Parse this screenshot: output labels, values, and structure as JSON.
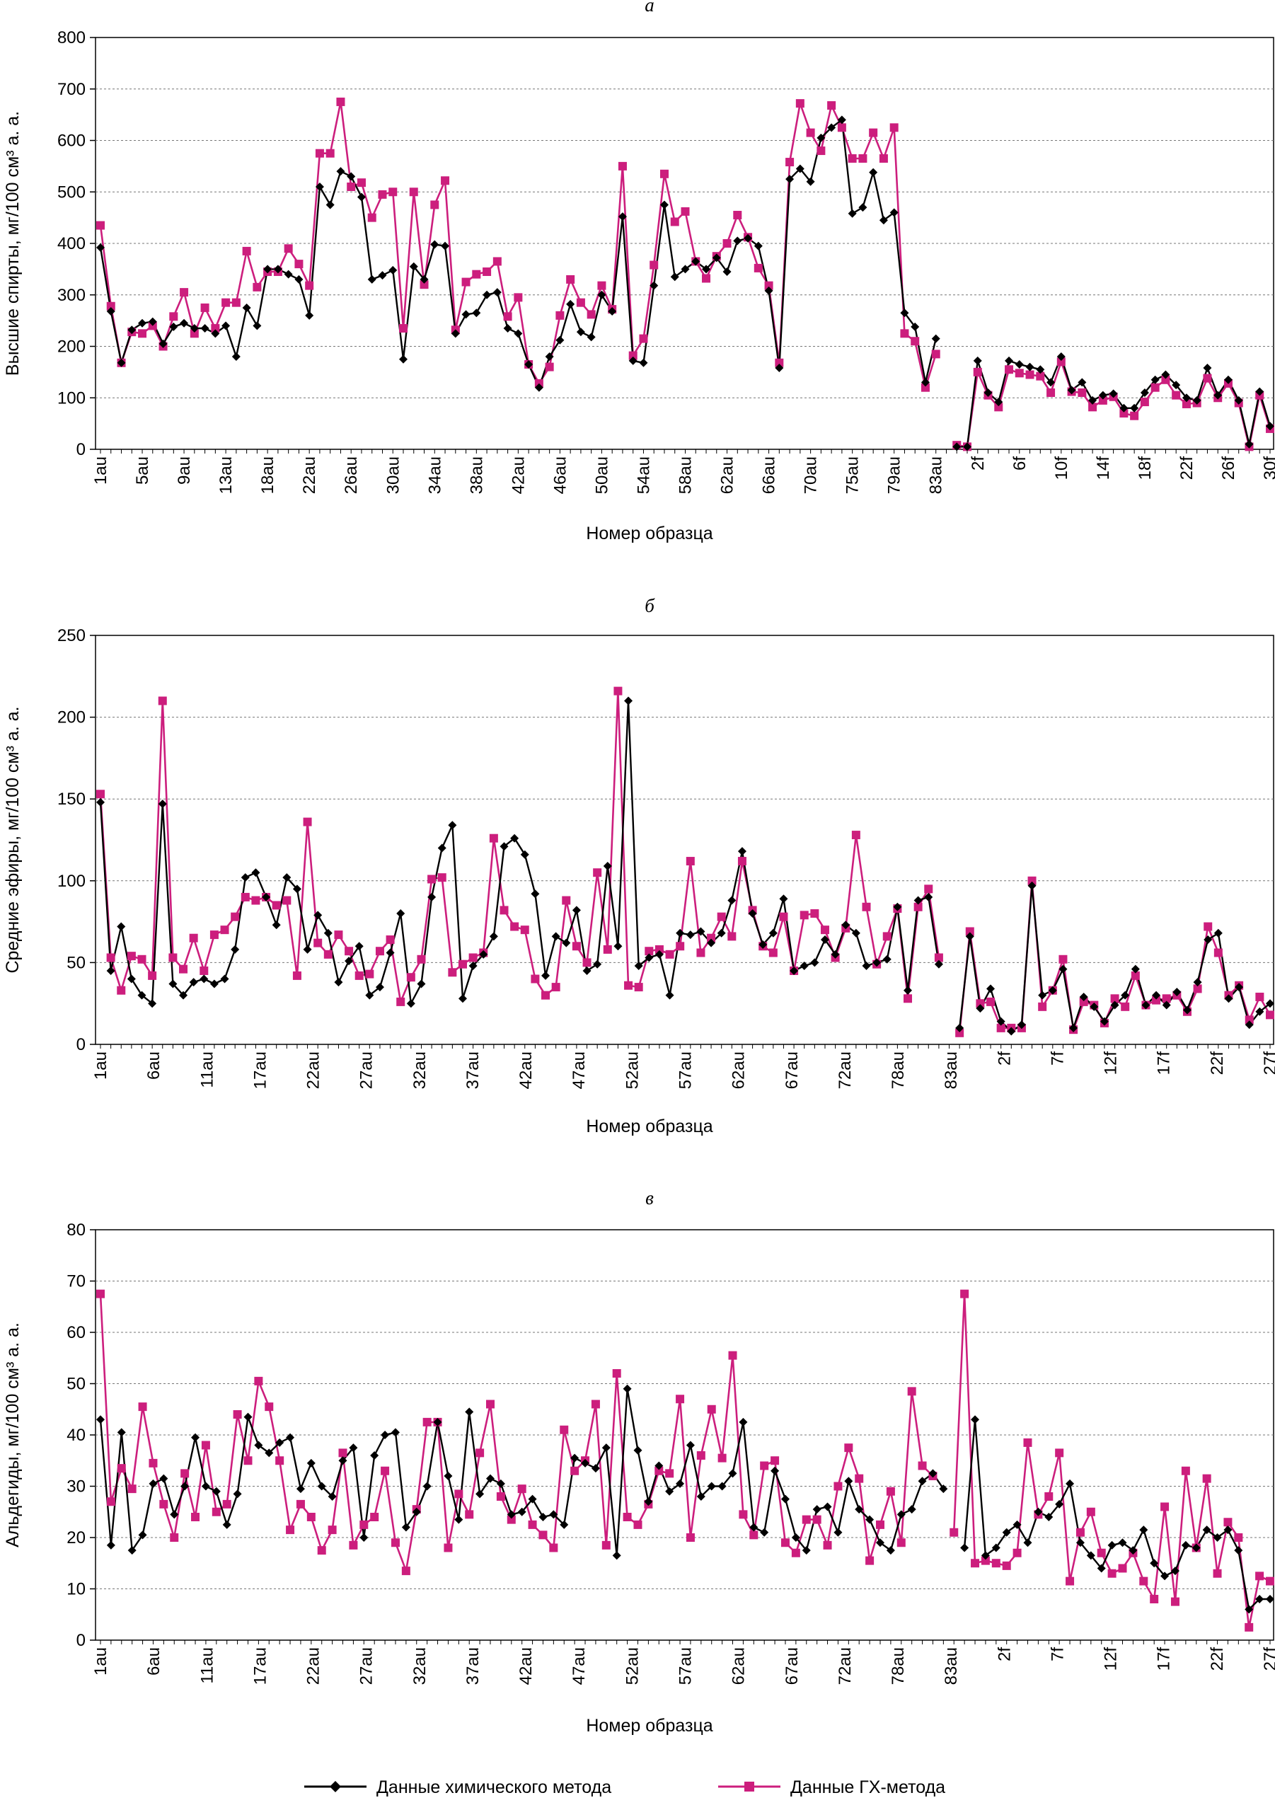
{
  "chart_data": [
    {
      "panel": "а",
      "type": "line",
      "ylabel": "Высшие спирты, мг/100 см³ а. а.",
      "xlabel": "Номер образца",
      "ylim": [
        0,
        800
      ],
      "yticks": [
        0,
        100,
        200,
        300,
        400,
        500,
        600,
        700,
        800
      ],
      "grid": "horizontal-dashed",
      "x_tick_labels": [
        "1au",
        "5au",
        "9au",
        "13au",
        "18au",
        "22au",
        "26au",
        "30au",
        "34au",
        "38au",
        "42au",
        "46au",
        "50au",
        "54au",
        "58au",
        "62au",
        "66au",
        "70au",
        "75au",
        "79au",
        "83au",
        "2f",
        "6f",
        "10f",
        "14f",
        "18f",
        "22f",
        "26f",
        "30f"
      ],
      "series": [
        {
          "name": "Данные химического метода",
          "color": "#000000",
          "values": [
            392,
            268,
            168,
            232,
            245,
            248,
            205,
            238,
            245,
            235,
            235,
            225,
            240,
            180,
            275,
            240,
            350,
            350,
            340,
            330,
            260,
            510,
            475,
            540,
            530,
            490,
            330,
            338,
            348,
            175,
            355,
            330,
            398,
            395,
            225,
            262,
            265,
            300,
            305,
            235,
            225,
            165,
            120,
            180,
            212,
            282,
            228,
            218,
            300,
            268,
            452,
            172,
            168,
            318,
            475,
            335,
            350,
            365,
            350,
            372,
            345,
            405,
            410,
            395,
            308,
            158,
            525,
            545,
            520,
            605,
            625,
            640,
            458,
            470,
            538,
            445,
            460,
            265,
            238,
            130,
            215,
            null,
            5,
            5,
            172,
            110,
            92,
            172,
            165,
            160,
            155,
            130,
            180,
            115,
            130,
            95,
            105,
            108,
            80,
            80,
            110,
            135,
            145,
            125,
            100,
            95,
            158,
            105,
            135,
            95,
            10,
            112,
            45
          ]
        },
        {
          "name": "Данные ГХ-метода",
          "color": "#cc1e7d",
          "values": [
            435,
            278,
            168,
            228,
            225,
            240,
            200,
            258,
            305,
            225,
            275,
            235,
            285,
            285,
            385,
            315,
            345,
            345,
            390,
            360,
            318,
            575,
            575,
            675,
            510,
            518,
            450,
            495,
            500,
            235,
            500,
            320,
            475,
            522,
            232,
            325,
            340,
            345,
            365,
            258,
            295,
            165,
            128,
            160,
            260,
            330,
            285,
            262,
            318,
            272,
            550,
            182,
            215,
            358,
            535,
            442,
            462,
            365,
            332,
            375,
            400,
            455,
            412,
            352,
            318,
            168,
            558,
            672,
            615,
            580,
            668,
            625,
            565,
            565,
            615,
            565,
            625,
            225,
            210,
            120,
            185,
            null,
            8,
            5,
            150,
            105,
            82,
            155,
            148,
            145,
            142,
            110,
            170,
            112,
            110,
            82,
            95,
            102,
            70,
            65,
            92,
            120,
            135,
            105,
            88,
            90,
            138,
            100,
            128,
            90,
            5,
            105,
            40
          ]
        }
      ]
    },
    {
      "panel": "б",
      "type": "line",
      "ylabel": "Средние эфиры, мг/100 см³ а. а.",
      "xlabel": "Номер образца",
      "ylim": [
        0,
        250
      ],
      "yticks": [
        0,
        50,
        100,
        150,
        200,
        250
      ],
      "grid": "horizontal-dashed",
      "x_tick_labels": [
        "1au",
        "6au",
        "11au",
        "17au",
        "22au",
        "27au",
        "32au",
        "37au",
        "42au",
        "47au",
        "52au",
        "57au",
        "62au",
        "67au",
        "72au",
        "78au",
        "83au",
        "2f",
        "7f",
        "12f",
        "17f",
        "22f",
        "27f"
      ],
      "series": [
        {
          "name": "Данные химического метода",
          "color": "#000000",
          "values": [
            148,
            45,
            72,
            40,
            30,
            25,
            147,
            37,
            30,
            38,
            40,
            37,
            40,
            58,
            102,
            105,
            90,
            73,
            102,
            95,
            58,
            79,
            68,
            38,
            51,
            60,
            30,
            35,
            56,
            80,
            25,
            37,
            90,
            120,
            134,
            28,
            48,
            55,
            66,
            121,
            126,
            116,
            92,
            42,
            66,
            62,
            82,
            45,
            49,
            109,
            60,
            210,
            48,
            53,
            55,
            30,
            68,
            67,
            69,
            62,
            68,
            88,
            118,
            80,
            61,
            68,
            89,
            45,
            48,
            50,
            64,
            55,
            73,
            68,
            48,
            50,
            52,
            84,
            33,
            88,
            90,
            49,
            null,
            10,
            66,
            22,
            34,
            14,
            8,
            12,
            97,
            30,
            33,
            46,
            10,
            29,
            23,
            14,
            24,
            30,
            46,
            24,
            30,
            24,
            32,
            21,
            38,
            64,
            68,
            28,
            35,
            12,
            20,
            25
          ]
        },
        {
          "name": "Данные ГХ-метода",
          "color": "#cc1e7d",
          "values": [
            153,
            53,
            33,
            54,
            52,
            42,
            210,
            53,
            46,
            65,
            45,
            67,
            70,
            78,
            90,
            88,
            90,
            85,
            88,
            42,
            136,
            62,
            55,
            67,
            57,
            42,
            43,
            57,
            64,
            26,
            41,
            52,
            101,
            102,
            44,
            49,
            53,
            56,
            126,
            82,
            72,
            70,
            40,
            30,
            35,
            88,
            60,
            50,
            105,
            58,
            216,
            36,
            35,
            57,
            58,
            55,
            60,
            112,
            56,
            65,
            78,
            66,
            112,
            82,
            60,
            56,
            78,
            45,
            79,
            80,
            70,
            53,
            71,
            128,
            84,
            49,
            66,
            83,
            28,
            84,
            95,
            53,
            null,
            7,
            69,
            25,
            26,
            10,
            10,
            10,
            100,
            23,
            33,
            52,
            9,
            26,
            24,
            13,
            28,
            23,
            42,
            24,
            27,
            28,
            30,
            20,
            34,
            72,
            56,
            30,
            36,
            15,
            29,
            18
          ]
        }
      ]
    },
    {
      "panel": "в",
      "type": "line",
      "ylabel": "Альдегиды, мг/100 см³ а. а.",
      "xlabel": "Номер образца",
      "ylim": [
        0,
        80
      ],
      "yticks": [
        0,
        10,
        20,
        30,
        40,
        50,
        60,
        70,
        80
      ],
      "grid": "horizontal-dashed",
      "x_tick_labels": [
        "1au",
        "6au",
        "11au",
        "17au",
        "22au",
        "27au",
        "32au",
        "37au",
        "42au",
        "47au",
        "52au",
        "57au",
        "62au",
        "67au",
        "72au",
        "78au",
        "83au",
        "2f",
        "7f",
        "12f",
        "17f",
        "22f",
        "27f"
      ],
      "series": [
        {
          "name": "Данные химического метода",
          "color": "#000000",
          "values": [
            43,
            18.5,
            40.5,
            17.5,
            20.5,
            30.5,
            31.5,
            24.5,
            30,
            39.5,
            30,
            29,
            22.5,
            28.5,
            43.5,
            38,
            36.5,
            38.5,
            39.5,
            29.5,
            34.5,
            30,
            28,
            35,
            37.5,
            20,
            36,
            40,
            40.5,
            22,
            25,
            30,
            42.5,
            32,
            23.5,
            44.5,
            28.5,
            31.5,
            30.5,
            24.5,
            25,
            27.5,
            24,
            24.5,
            22.5,
            35.5,
            34.5,
            33.5,
            37.5,
            16.5,
            49,
            37,
            27,
            34,
            29,
            30.5,
            38,
            28,
            30,
            30,
            32.5,
            42.5,
            22,
            21,
            33,
            27.5,
            20,
            17.5,
            25.5,
            26,
            21,
            31,
            25.5,
            23.5,
            19,
            17.5,
            24.5,
            25.5,
            31,
            32.5,
            29.5,
            null,
            18,
            43,
            16.5,
            18,
            21,
            22.5,
            19,
            25,
            24,
            26.5,
            30.5,
            19,
            16.5,
            14,
            18.5,
            19,
            17.5,
            21.5,
            15,
            12.5,
            13.5,
            18.5,
            18,
            21.5,
            20,
            21.5,
            17.5,
            6,
            8,
            8
          ]
        },
        {
          "name": "Данные ГХ-метода",
          "color": "#cc1e7d",
          "values": [
            67.5,
            27,
            33.5,
            29.5,
            45.5,
            34.5,
            26.5,
            20,
            32.5,
            24,
            38,
            25,
            26.5,
            44,
            35,
            50.5,
            45.5,
            35,
            21.5,
            26.5,
            24,
            17.5,
            21.5,
            36.5,
            18.5,
            22.5,
            24,
            33,
            19,
            13.5,
            25.5,
            42.5,
            42.5,
            18,
            28.5,
            24.5,
            36.5,
            46,
            28,
            23.5,
            29.5,
            22.5,
            20.5,
            18,
            41,
            33,
            35,
            46,
            18.5,
            52,
            24,
            22.5,
            26.5,
            33,
            32.5,
            47,
            20,
            36,
            45,
            35.5,
            55.5,
            24.5,
            20.5,
            34,
            35,
            19,
            17,
            23.5,
            23.5,
            18.5,
            30,
            37.5,
            31.5,
            15.5,
            22.5,
            29,
            19,
            48.5,
            34,
            32,
            null,
            21,
            67.5,
            15,
            15.5,
            15,
            14.5,
            17,
            38.5,
            24.5,
            28,
            36.5,
            11.5,
            21,
            25,
            17,
            13,
            14,
            17,
            11.5,
            8,
            26,
            7.5,
            33,
            18,
            31.5,
            13,
            23,
            20,
            2.5,
            12.5,
            11.5
          ]
        }
      ]
    }
  ],
  "legend": {
    "position": "bottom-center",
    "items": [
      {
        "label": "Данные химического метода",
        "color": "#000000",
        "marker": "diamond"
      },
      {
        "label": "Данные ГХ-метода",
        "color": "#cc1e7d",
        "marker": "square"
      }
    ]
  }
}
